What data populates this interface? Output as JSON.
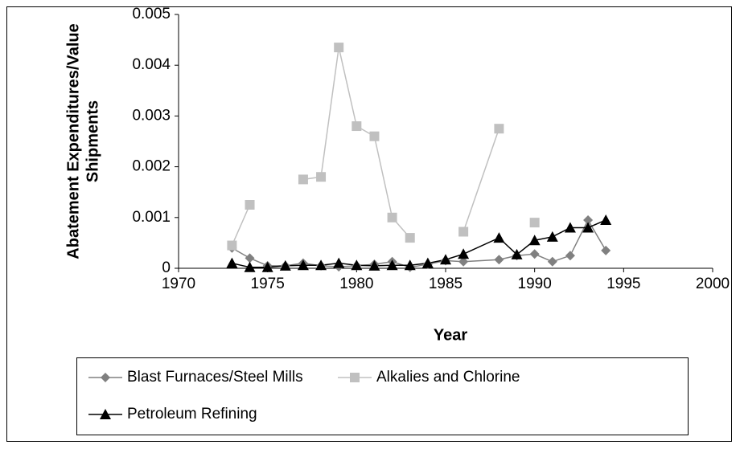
{
  "chart_data": {
    "type": "line",
    "x_label": "Year",
    "y_label": [
      "Abatement Expenditures/Value",
      "Shipments"
    ],
    "xlim": [
      1970,
      2000
    ],
    "xticks": [
      1970,
      1975,
      1980,
      1985,
      1990,
      1995,
      2000
    ],
    "ylim": [
      0,
      0.005
    ],
    "yticks": [
      0,
      0.001,
      0.002,
      0.003,
      0.004,
      0.005
    ],
    "grid": false,
    "legend": "bottom",
    "series": [
      {
        "name": "Blast Furnaces/Steel Mills",
        "color": "#808080",
        "marker": "diamond",
        "x": [
          1973,
          1974,
          1975,
          1976,
          1977,
          1978,
          1979,
          1980,
          1981,
          1982,
          1983,
          1984,
          1985,
          1986,
          1988,
          1989,
          1990,
          1991,
          1992,
          1993,
          1994
        ],
        "values": [
          0.0004,
          0.0002,
          5e-05,
          5e-05,
          0.0001,
          5e-05,
          3e-05,
          5e-05,
          8e-05,
          0.00013,
          2e-05,
          8e-05,
          0.00015,
          0.00013,
          0.00017,
          0.00025,
          0.00028,
          0.00013,
          0.00025,
          0.00095,
          0.00035
        ]
      },
      {
        "name": "Alkalies and Chlorine",
        "color": "#c0c0c0",
        "marker": "square",
        "x": [
          1973,
          1974,
          1976,
          1977,
          1978,
          1979,
          1980,
          1981,
          1982,
          1983,
          1985,
          1986,
          1988,
          1989,
          1990
        ],
        "values": [
          0.00045,
          0.00125,
          null,
          0.00175,
          0.0018,
          0.00435,
          0.0028,
          0.0026,
          0.001,
          0.0006,
          null,
          0.00072,
          0.00275,
          null,
          0.0009
        ]
      },
      {
        "name": "Petroleum Refining",
        "color": "#000000",
        "marker": "triangle",
        "x": [
          1973,
          1974,
          1975,
          1976,
          1977,
          1978,
          1979,
          1980,
          1981,
          1982,
          1983,
          1984,
          1985,
          1986,
          1988,
          1989,
          1990,
          1991,
          1992,
          1993,
          1994
        ],
        "values": [
          0.0001,
          2e-05,
          2e-05,
          5e-05,
          6e-05,
          6e-05,
          0.0001,
          6e-05,
          5e-05,
          6e-05,
          6e-05,
          0.0001,
          0.00017,
          0.00028,
          0.0006,
          0.00027,
          0.00055,
          0.00062,
          0.0008,
          0.0008,
          0.00095
        ]
      }
    ]
  }
}
